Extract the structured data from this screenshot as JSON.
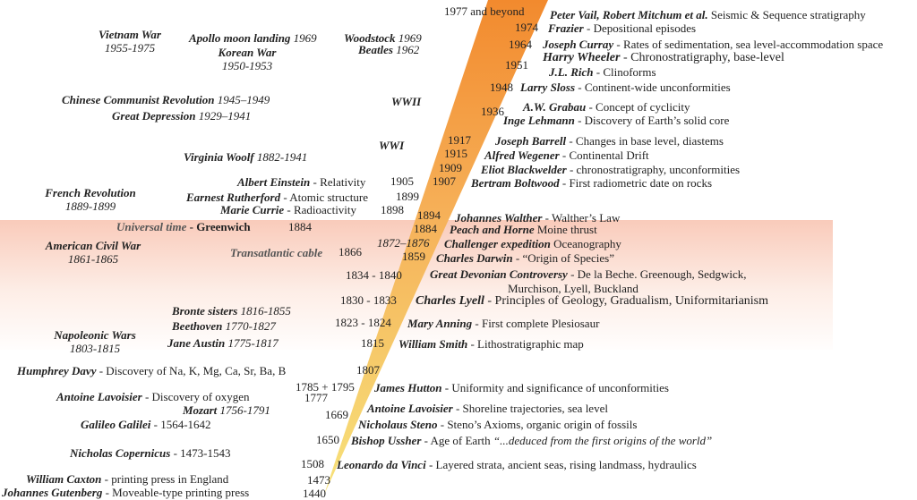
{
  "colors": {
    "band": "#f4a082",
    "wedge_top": "#f28a2e",
    "wedge_bottom": "#f7e27a"
  },
  "years": [
    "1977 and beyond",
    "1974",
    "1964",
    "1951",
    "1948",
    "1936",
    "1917",
    "1915",
    "1909",
    "1907",
    "1905",
    "1899",
    "1898",
    "1894",
    "1884",
    "1884",
    "1872–1876",
    "1866",
    "1859",
    "1834 - 1840",
    "1830 - 1833",
    "1823 - 1824",
    "1815",
    "1807",
    "1785 + 1795",
    "1777",
    "1669",
    "1650",
    "1508",
    "1473",
    "1440"
  ],
  "events": [
    {
      "name": "Peter Vail, Robert Mitchum et al.",
      "desc": " Seismic & Sequence stratigraphy"
    },
    {
      "name": "Frazier",
      "desc": " - Depositional episodes"
    },
    {
      "name": "Joseph Curray",
      "desc": " - Rates of sedimentation, sea level-accommodation space"
    },
    {
      "name": "Harry Wheeler",
      "desc": " - Chronostratigraphy, base-level"
    },
    {
      "name": "J.L. Rich",
      "desc": " - Clinoforms"
    },
    {
      "name": "Larry Sloss",
      "desc": " - Continent-wide unconformities"
    },
    {
      "name": "A.W. Grabau",
      "desc": " - Concept of cyclicity"
    },
    {
      "name": "Inge Lehmann",
      "desc": " - Discovery of Earth’s solid core"
    },
    {
      "name": "Joseph Barrell",
      "desc": " - Changes in base level, diastems"
    },
    {
      "name": "Alfred Wegener",
      "desc": " - Continental Drift"
    },
    {
      "name": "Eliot Blackwelder",
      "desc": " - chronostratigraphy, unconformities"
    },
    {
      "name": "Bertram Boltwood",
      "desc": " - First radiometric date on rocks"
    },
    {
      "name": "Johannes Walther",
      "desc": " - Walther’s Law"
    },
    {
      "name": "Peach and Horne",
      "desc": " Moine thrust"
    },
    {
      "name": "Challenger expedition",
      "desc": " Oceanography"
    },
    {
      "name": "Charles Darwin",
      "desc": " - “Origin of Species”"
    },
    {
      "name": "Great Devonian Controversy",
      "desc": " - De la Beche. Greenough, Sedgwick,"
    },
    {
      "name": "",
      "desc": "Murchison, Lyell, Buckland"
    },
    {
      "name": "Charles Lyell",
      "desc": " - Principles of Geology, Gradualism, Uniformitarianism"
    },
    {
      "name": "Mary Anning",
      "desc": " - First complete Plesiosaur"
    },
    {
      "name": "William Smith",
      "desc": " - Lithostratigraphic map"
    },
    {
      "name": "James Hutton",
      "desc": " - Uniformity and significance of unconformities"
    },
    {
      "name": "Antoine Lavoisier",
      "desc": " - Shoreline trajectories, sea level"
    },
    {
      "name": "Nicholaus Steno",
      "desc": " - Steno’s Axioms, organic origin of fossils"
    },
    {
      "name": "Bishop Ussher",
      "desc": " - Age of Earth ",
      "quote": "“...deduced from the first origins of the world”"
    },
    {
      "name": "Leonardo da Vinci",
      "desc": " - Layered strata, ancient seas, rising landmass, hydraulics"
    }
  ],
  "context": [
    {
      "name": "Vietnam War",
      "sub": "1955-1975"
    },
    {
      "name": "Apollo moon landing",
      "yr": " 1969"
    },
    {
      "name": "Korean War",
      "sub": "1950-1953"
    },
    {
      "name": "Woodstock",
      "yr": " 1969"
    },
    {
      "name": "Beatles",
      "yr": " 1962"
    },
    {
      "name": "Chinese Communist Revolution",
      "yr": "  1945–1949"
    },
    {
      "name": "Great Depression",
      "yr": "  1929–1941"
    },
    {
      "name": "WWII"
    },
    {
      "name": "WWI"
    },
    {
      "name": "Virginia Woolf",
      "yr": " 1882-1941"
    },
    {
      "name": "Albert Einstein",
      "desc": " - Relativity"
    },
    {
      "name": "French Revolution",
      "sub": "1889-1899"
    },
    {
      "name": "Earnest Rutherford",
      "desc": " - Atomic structure"
    },
    {
      "name": "Marie Currie",
      "desc": " - Radioactivity"
    },
    {
      "name": "Universal time",
      "desc": " - Greenwich"
    },
    {
      "name": "American Civil War",
      "sub": "1861-1865"
    },
    {
      "name": "Transatlantic cable"
    },
    {
      "name": "Bronte sisters",
      "yr": " 1816-1855"
    },
    {
      "name": "Beethoven",
      "yr": " 1770-1827"
    },
    {
      "name": "Napoleonic Wars",
      "sub": "1803-1815"
    },
    {
      "name": "Jane Austin",
      "yr": " 1775-1817"
    },
    {
      "name": "Humphrey Davy",
      "desc": " - Discovery of Na, K, Mg, Ca, Sr, Ba, B"
    },
    {
      "name": "Antoine Lavoisier",
      "desc": " - Discovery of oxygen"
    },
    {
      "name": "Mozart",
      "yr": " 1756-1791"
    },
    {
      "name": "Galileo Galilei",
      "desc": " - 1564-1642"
    },
    {
      "name": "Nicholas Copernicus",
      "desc": " - 1473-1543"
    },
    {
      "name": "William Caxton",
      "desc": " - printing press in England"
    },
    {
      "name": "Johannes Gutenberg",
      "desc": " - Moveable-type printing press"
    }
  ]
}
